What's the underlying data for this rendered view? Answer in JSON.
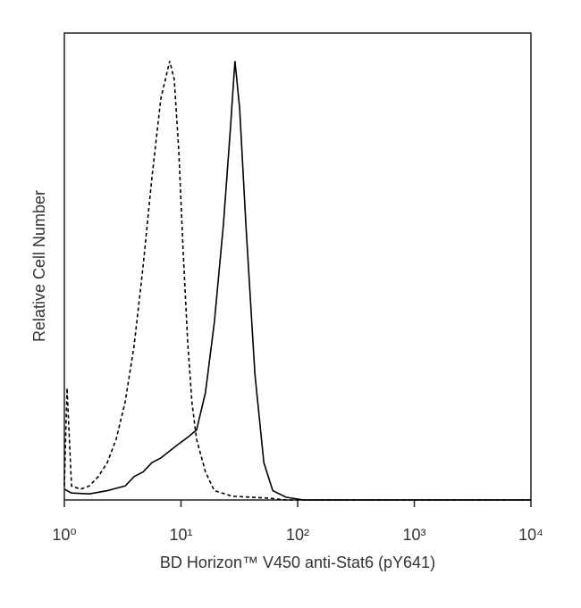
{
  "chart_data": {
    "type": "line",
    "x_label": "BD Horizon™ V450 anti-Stat6 (pY641)",
    "y_label": "Relative Cell Number",
    "log_x": true,
    "xlim": [
      1,
      10000
    ],
    "ylim": [
      0,
      100
    ],
    "xticks": [
      {
        "value": 1,
        "label": "10⁰"
      },
      {
        "value": 10,
        "label": "10¹"
      },
      {
        "value": 100,
        "label": "10²"
      },
      {
        "value": 1000,
        "label": "10³"
      },
      {
        "value": 10000,
        "label": "10⁴"
      }
    ],
    "series": [
      {
        "color": "#000000",
        "dashed": true,
        "x": [
          1,
          1.054,
          1.152,
          1.374,
          1.638,
          1.955,
          2.333,
          2.78,
          3.32,
          3.96,
          4.73,
          5.63,
          6.72,
          7.34,
          8.0,
          8.76,
          9.56,
          10.4,
          11.4,
          12.4,
          13.6,
          16.2,
          19.3,
          27.5,
          55.9,
          79.5,
          10000
        ],
        "values": [
          3,
          24,
          3,
          2.3,
          3,
          5,
          8,
          13,
          21,
          33,
          50,
          69,
          86,
          90,
          94,
          90,
          75,
          54,
          34,
          21,
          13,
          6,
          2,
          0.8,
          0.4,
          0,
          0
        ]
      },
      {
        "color": "#000000",
        "dashed": false,
        "x": [
          1,
          1.152,
          1.638,
          2.333,
          3.32,
          3.96,
          4.73,
          5.63,
          6.72,
          8.0,
          9.56,
          11.4,
          13.6,
          16.2,
          19.3,
          23.1,
          26.6,
          29.0,
          31.8,
          36.0,
          43.0,
          51.3,
          61.2,
          79.5,
          112.6,
          10000
        ],
        "values": [
          2.3,
          1.5,
          1.3,
          2,
          3,
          5,
          6,
          8,
          9,
          10.5,
          12,
          13.4,
          15,
          23,
          38,
          59,
          80,
          94,
          84,
          59,
          27,
          8,
          2,
          0.6,
          0,
          0
        ]
      }
    ]
  }
}
